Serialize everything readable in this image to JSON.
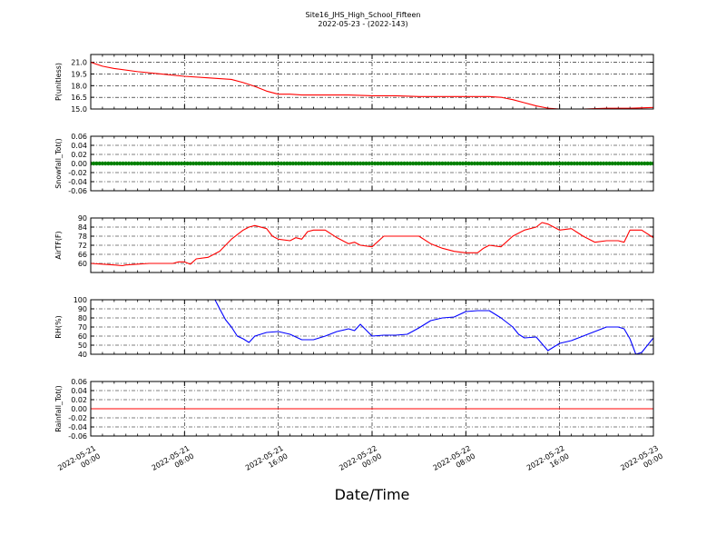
{
  "title": {
    "line1": "Site16_JHS_High_School_Fifteen",
    "line2": "2022-05-23 - (2022-143)"
  },
  "colors": {
    "red": "#ff0000",
    "green": "#008000",
    "blue": "#0000ff",
    "grid": "#000000"
  },
  "chart_data": {
    "type": "line",
    "xlabel": "Date/Time",
    "x_ticks": [
      [
        "2022-05-21",
        "00:00"
      ],
      [
        "2022-05-21",
        "08:00"
      ],
      [
        "2022-05-21",
        "16:00"
      ],
      [
        "2022-05-22",
        "00:00"
      ],
      [
        "2022-05-22",
        "08:00"
      ],
      [
        "2022-05-22",
        "16:00"
      ],
      [
        "2022-05-23",
        "00:00"
      ]
    ],
    "xlim": [
      "2022-05-21 00:00",
      "2022-05-23 00:00"
    ],
    "grid": true,
    "panels": [
      {
        "ylabel": "P(unitless)",
        "ylim": [
          15.0,
          22.0
        ],
        "yticks": [
          "15.0",
          "16.5",
          "18.0",
          "19.5",
          "21.0"
        ],
        "ytick_values": [
          15.0,
          16.5,
          18.0,
          19.5,
          21.0
        ],
        "color": "red",
        "style": "line",
        "x_hours": [
          0,
          1,
          2,
          4,
          6,
          8,
          10,
          11,
          12,
          13,
          14,
          15,
          16,
          17,
          18,
          20,
          22,
          24,
          26,
          28,
          30,
          32,
          34,
          35,
          36,
          37,
          38,
          39,
          40,
          42,
          44,
          46,
          48
        ],
        "values": [
          21.0,
          20.5,
          20.2,
          19.8,
          19.5,
          19.2,
          19.0,
          18.9,
          18.8,
          18.4,
          17.9,
          17.3,
          16.9,
          16.9,
          16.8,
          16.8,
          16.8,
          16.7,
          16.7,
          16.6,
          16.6,
          16.6,
          16.6,
          16.5,
          16.2,
          15.8,
          15.4,
          15.1,
          15.0,
          15.0,
          15.1,
          15.1,
          15.2
        ]
      },
      {
        "ylabel": "Snowfall_Tot()",
        "ylim": [
          -0.06,
          0.06
        ],
        "yticks": [
          "-0.06",
          "-0.04",
          "-0.02",
          "0.00",
          "0.02",
          "0.04",
          "0.06"
        ],
        "ytick_values": [
          -0.06,
          -0.04,
          -0.02,
          0.0,
          0.02,
          0.04,
          0.06
        ],
        "color": "green",
        "style": "dots",
        "x_hours": [
          0,
          48
        ],
        "values": [
          0.0,
          0.0
        ]
      },
      {
        "ylabel": "AirTF(F)",
        "ylim": [
          54,
          90
        ],
        "yticks": [
          "60",
          "66",
          "72",
          "78",
          "84",
          "90"
        ],
        "ytick_values": [
          60,
          66,
          72,
          78,
          84,
          90
        ],
        "color": "red",
        "style": "line",
        "x_hours": [
          0,
          1,
          2,
          2.7,
          3,
          4,
          5,
          6,
          7,
          7.5,
          8,
          8.5,
          9,
          10,
          11,
          12,
          13,
          13.5,
          14,
          15,
          15.5,
          16,
          17,
          17.5,
          18,
          18.5,
          19,
          20,
          21,
          22,
          22.5,
          23,
          24,
          25,
          26,
          27,
          28,
          29,
          30,
          31,
          32,
          33,
          33.5,
          34,
          35,
          36,
          37,
          38,
          38.5,
          39,
          40,
          41,
          42,
          43,
          44,
          45,
          45.5,
          46,
          47,
          48
        ],
        "values": [
          60,
          59.5,
          59,
          58.5,
          59,
          59.5,
          60,
          60,
          60,
          61,
          61,
          59.5,
          63,
          64,
          68,
          76,
          82,
          84,
          85,
          83,
          78,
          76,
          75,
          77,
          76,
          81,
          82,
          82,
          77,
          73,
          74,
          72,
          71,
          78,
          78,
          78,
          78,
          73,
          70,
          68,
          67,
          67,
          70,
          72,
          71,
          78,
          82,
          84,
          87,
          86,
          82,
          83,
          78,
          74,
          75,
          75,
          74,
          82,
          82,
          77
        ]
      },
      {
        "ylabel": "RH(%)",
        "ylim": [
          40,
          100
        ],
        "yticks": [
          "40",
          "50",
          "60",
          "70",
          "80",
          "90",
          "100"
        ],
        "ytick_values": [
          40,
          50,
          60,
          70,
          80,
          90,
          100
        ],
        "color": "blue",
        "style": "line",
        "x_hours": [
          10.6,
          11,
          11.5,
          12,
          12.5,
          13,
          13.5,
          14,
          15,
          16,
          17,
          18,
          19,
          20,
          21,
          22,
          22.5,
          23,
          24,
          25,
          26,
          27,
          28,
          29,
          30,
          31,
          31.5,
          32,
          33,
          34,
          35,
          36,
          36.5,
          37,
          38,
          39,
          40,
          41,
          42,
          43,
          44,
          45,
          45.5,
          46,
          46.5,
          47,
          48
        ],
        "values": [
          100,
          90,
          78,
          70,
          60,
          57,
          53,
          60,
          64,
          65,
          62,
          56,
          56,
          60,
          65,
          68,
          66,
          73,
          60,
          61,
          61,
          62,
          69,
          77,
          80,
          81,
          84,
          87,
          88,
          88,
          80,
          70,
          62,
          58,
          59,
          44,
          52,
          55,
          60,
          65,
          70,
          70,
          68,
          57,
          40,
          42,
          58
        ]
      },
      {
        "ylabel": "Rainfall_Tot()",
        "ylim": [
          -0.06,
          0.06
        ],
        "yticks": [
          "-0.06",
          "-0.04",
          "-0.02",
          "0.00",
          "0.02",
          "0.04",
          "0.06"
        ],
        "ytick_values": [
          -0.06,
          -0.04,
          -0.02,
          0.0,
          0.02,
          0.04,
          0.06
        ],
        "color": "red",
        "style": "line",
        "x_hours": [
          0,
          48
        ],
        "values": [
          0.0,
          0.0
        ]
      }
    ]
  }
}
